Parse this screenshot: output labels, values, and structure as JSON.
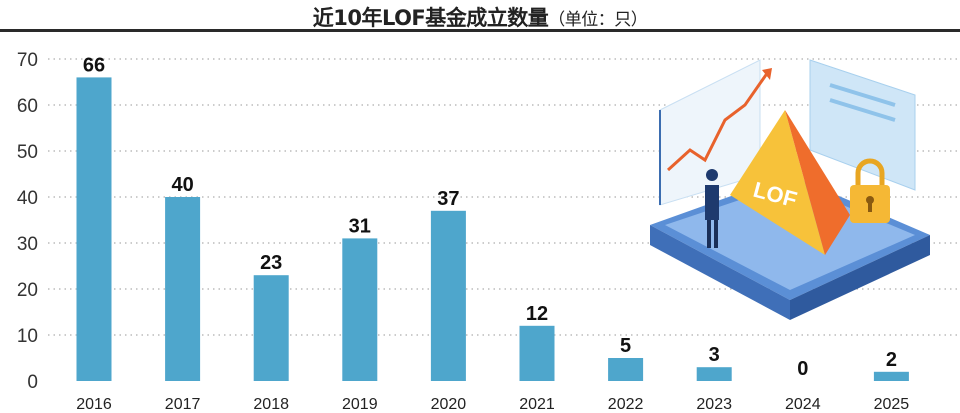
{
  "chart_data": {
    "type": "bar",
    "title": "近10年LOF基金成立数量",
    "unit_note": "（单位：只）",
    "categories": [
      "2016",
      "2017",
      "2018",
      "2019",
      "2020",
      "2021",
      "2022",
      "2023",
      "2024",
      "2025"
    ],
    "values": [
      66,
      40,
      23,
      31,
      37,
      12,
      5,
      3,
      0,
      2
    ],
    "yticks": [
      0,
      10,
      20,
      30,
      40,
      50,
      60,
      70
    ],
    "ylim": [
      0,
      70
    ],
    "xlabel": "",
    "ylabel": "",
    "grid": true,
    "legend": "none",
    "bar_color": "#4ea6cc"
  },
  "illustration": {
    "label": "LOF"
  }
}
